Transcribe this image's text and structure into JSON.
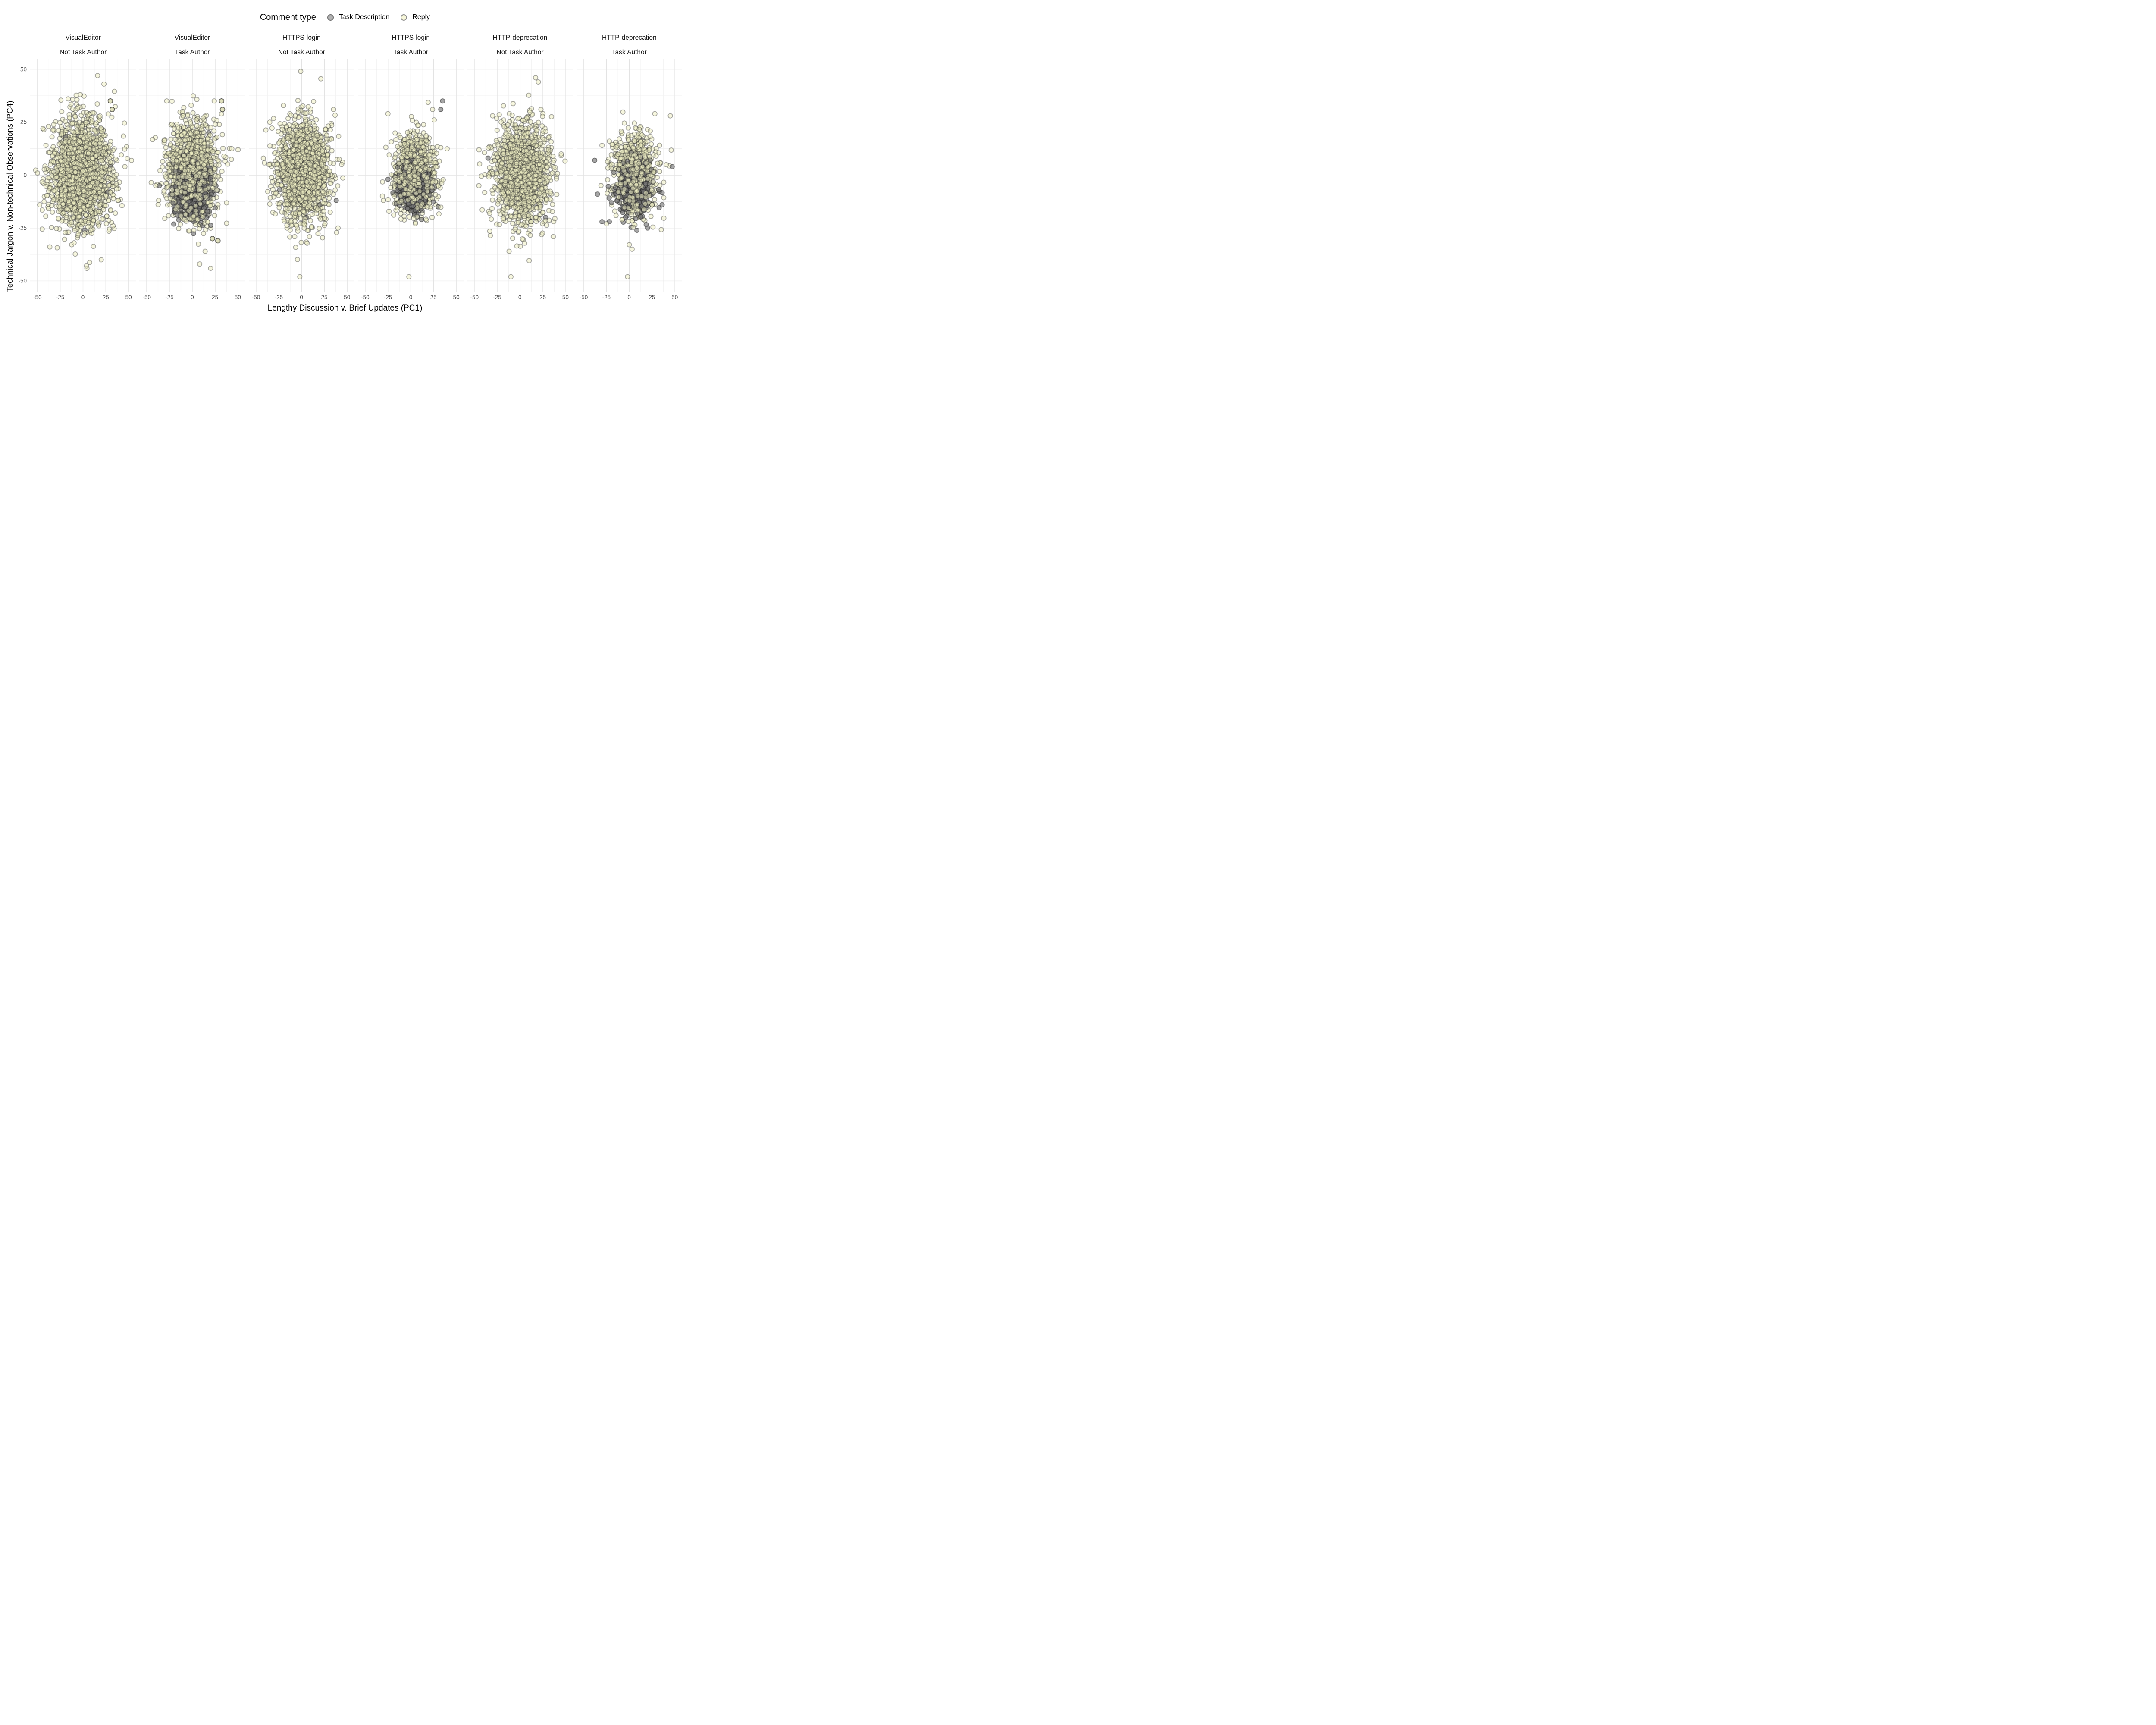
{
  "legend": {
    "title": "Comment type",
    "items": [
      {
        "id": "task",
        "label": "Task Description",
        "fill": "#b3b3b3",
        "stroke": "#6e6e6e"
      },
      {
        "id": "reply",
        "label": "Reply",
        "fill": "#f7f7d9",
        "stroke": "#8d8d8d"
      }
    ]
  },
  "chart_data": {
    "type": "scatter",
    "xlabel": "Lengthy Discussion v. Brief Updates (PC1)",
    "ylabel": "Technical Jargon v. Non-technical Observations (PC4)",
    "x_ticks": [
      -50,
      -25,
      0,
      25,
      50
    ],
    "y_ticks": [
      50,
      25,
      0,
      -25,
      -50
    ],
    "x_domain": [
      -58,
      58
    ],
    "y_domain": [
      -55,
      55
    ],
    "grid": {
      "major_color": "#e3e3e3",
      "minor_color": "#f1f1f1",
      "major_step": 25,
      "minor_offset": 12.5
    },
    "point": {
      "radius": 5.2,
      "stroke_width": 1.7,
      "reply_fill": "rgba(240,240,196,0.55)",
      "reply_stroke": "rgba(45,45,45,0.42)",
      "task_fill": "rgba(120,120,120,0.65)",
      "task_stroke": "rgba(40,40,40,0.55)"
    },
    "legend_position": "top",
    "panels": [
      {
        "facet_line1": "VisualEditor",
        "facet_line2": "Not Task Author",
        "seed": 11,
        "reply_cluster": {
          "n": 2000,
          "cx": -2,
          "cy": 1,
          "sx": 16,
          "sy": 12.5
        },
        "task_cluster": {
          "n": 0,
          "cx": 0,
          "cy": 0,
          "sx": 0,
          "sy": 0
        },
        "reply_points": [
          [
            16,
            47
          ],
          [
            23,
            43
          ],
          [
            -50,
            1
          ],
          [
            20,
            -40
          ],
          [
            -44,
            22
          ],
          [
            -3,
            38
          ]
        ],
        "task_points": [
          [
            -19,
            18
          ],
          [
            30,
            4
          ],
          [
            27,
            -8
          ],
          [
            2,
            -26
          ]
        ],
        "ringed_points": [
          [
            30,
            35
          ],
          [
            32,
            31
          ]
        ]
      },
      {
        "facet_line1": "VisualEditor",
        "facet_line2": "Task Author",
        "seed": 22,
        "reply_cluster": {
          "n": 1500,
          "cx": 0,
          "cy": 2,
          "sx": 13,
          "sy": 11
        },
        "task_cluster": {
          "n": 700,
          "cx": 0,
          "cy": -7,
          "sx": 9,
          "sy": 6
        },
        "reply_points": [
          [
            -28,
            35
          ],
          [
            24,
            35
          ],
          [
            -40,
            -5
          ],
          [
            50,
            12
          ],
          [
            14,
            -36
          ],
          [
            8,
            -42
          ],
          [
            20,
            -44
          ]
        ],
        "task_points": [
          [
            -36,
            -5
          ],
          [
            18,
            20
          ]
        ],
        "ringed_points": [
          [
            32,
            35
          ],
          [
            33,
            31
          ],
          [
            22,
            -30
          ],
          [
            28,
            -31
          ]
        ]
      },
      {
        "facet_line1": "HTTPS-login",
        "facet_line2": "Not Task Author",
        "seed": 33,
        "reply_cluster": {
          "n": 1800,
          "cx": 2,
          "cy": 2,
          "sx": 13.5,
          "sy": 11.5
        },
        "task_cluster": {
          "n": 0,
          "cx": 0,
          "cy": 0,
          "sx": 0,
          "sy": 0
        },
        "reply_points": [
          [
            -1,
            49
          ],
          [
            -2,
            -48
          ],
          [
            35,
            31
          ],
          [
            -35,
            25
          ],
          [
            40,
            -25
          ],
          [
            -42,
            8
          ],
          [
            44,
            5
          ]
        ],
        "task_points": [
          [
            -24,
            -7
          ],
          [
            5,
            -20
          ],
          [
            38,
            -12
          ],
          [
            20,
            -14
          ]
        ],
        "ringed_points": [
          [
            8,
            -8
          ]
        ]
      },
      {
        "facet_line1": "HTTPS-login",
        "facet_line2": "Task Author",
        "seed": 44,
        "reply_cluster": {
          "n": 1000,
          "cx": 4,
          "cy": 0,
          "sx": 11,
          "sy": 9.5
        },
        "task_cluster": {
          "n": 450,
          "cx": 3,
          "cy": -6,
          "sx": 8,
          "sy": 5.5
        },
        "reply_points": [
          [
            -2,
            -48
          ],
          [
            -25,
            29
          ],
          [
            33,
            13
          ],
          [
            -30,
            -12
          ],
          [
            24,
            31
          ]
        ],
        "task_points": [
          [
            35,
            35
          ],
          [
            33,
            31
          ],
          [
            -25,
            -2
          ],
          [
            30,
            -15
          ],
          [
            12,
            -21
          ]
        ],
        "ringed_points": [
          [
            9,
            -4
          ]
        ]
      },
      {
        "facet_line1": "HTTP-deprecation",
        "facet_line2": "Not Task Author",
        "seed": 55,
        "reply_cluster": {
          "n": 1600,
          "cx": 2,
          "cy": 1,
          "sx": 14.5,
          "sy": 11.5
        },
        "task_cluster": {
          "n": 0,
          "cx": 0,
          "cy": 0,
          "sx": 0,
          "sy": 0
        },
        "reply_points": [
          [
            17,
            46
          ],
          [
            20,
            44
          ],
          [
            -10,
            -48
          ],
          [
            -12,
            -36
          ],
          [
            45,
            10
          ],
          [
            -45,
            -5
          ],
          [
            -30,
            28
          ]
        ],
        "task_points": [
          [
            -35,
            8
          ],
          [
            10,
            13
          ],
          [
            28,
            -20
          ]
        ],
        "ringed_points": [
          [
            12,
            -22
          ]
        ]
      },
      {
        "facet_line1": "HTTP-deprecation",
        "facet_line2": "Task Author",
        "seed": 66,
        "reply_cluster": {
          "n": 850,
          "cx": 6,
          "cy": 1,
          "sx": 11,
          "sy": 9
        },
        "task_cluster": {
          "n": 380,
          "cx": 6,
          "cy": -7,
          "sx": 9,
          "sy": 6
        },
        "reply_points": [
          [
            -2,
            -48
          ],
          [
            3,
            -35
          ],
          [
            -25,
            -23
          ],
          [
            28,
            29
          ],
          [
            45,
            28
          ],
          [
            -30,
            14
          ]
        ],
        "task_points": [
          [
            -38,
            7
          ],
          [
            -30,
            -22
          ],
          [
            47,
            4
          ],
          [
            36,
            -14
          ],
          [
            -22,
            -22
          ],
          [
            20,
            -25
          ],
          [
            -35,
            -9
          ]
        ],
        "ringed_points": [
          [
            25,
            -14
          ]
        ]
      }
    ]
  }
}
